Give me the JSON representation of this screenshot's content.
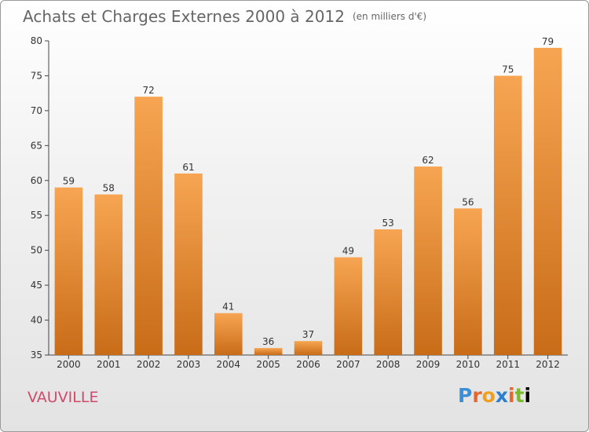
{
  "title": "Achats et Charges Externes 2000 à 2012",
  "unit_label": "(en milliers d'€)",
  "commune": "VAUVILLE",
  "logo_text": "Proxiti",
  "colors": {
    "bar_light": "#f7a552",
    "bar_dark": "#c86c18",
    "title": "#666666",
    "commune": "#d04a6a"
  },
  "chart_data": {
    "type": "bar",
    "categories": [
      "2000",
      "2001",
      "2002",
      "2003",
      "2004",
      "2005",
      "2006",
      "2007",
      "2008",
      "2009",
      "2010",
      "2011",
      "2012"
    ],
    "values": [
      59,
      58,
      72,
      61,
      41,
      36,
      37,
      49,
      53,
      62,
      56,
      75,
      79
    ],
    "ylim": [
      35,
      80
    ],
    "yticks": [
      35,
      40,
      45,
      50,
      55,
      60,
      65,
      70,
      75,
      80
    ],
    "grid": false
  }
}
